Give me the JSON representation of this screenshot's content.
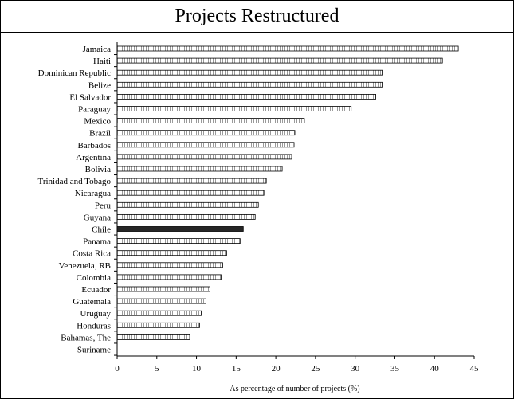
{
  "chart_data": {
    "type": "bar",
    "orientation": "horizontal",
    "title": "Projects Restructured",
    "xlabel": "As percentage of number of projects (%)",
    "ylabel": "",
    "xlim": [
      0,
      45
    ],
    "xticks": [
      "0",
      "5",
      "10",
      "15",
      "20",
      "25",
      "30",
      "35",
      "40",
      "45"
    ],
    "grid": false,
    "legend": "none",
    "highlight": "Chile",
    "colors": {
      "bar_fill": "#ffffff",
      "bar_pattern": "#9a9a9a",
      "highlight_fill": "#262626",
      "axis": "#000000"
    },
    "categories": [
      "Jamaica",
      "Haiti",
      "Dominican Republic",
      "Belize",
      "El Salvador",
      "Paraguay",
      "Mexico",
      "Brazil",
      "Barbados",
      "Argentina",
      "Bolivia",
      "Trinidad and Tobago",
      "Nicaragua",
      "Peru",
      "Guyana",
      "Chile",
      "Panama",
      "Costa Rica",
      "Venezuela, RB",
      "Colombia",
      "Ecuador",
      "Guatemala",
      "Uruguay",
      "Honduras",
      "Bahamas, The",
      "Suriname"
    ],
    "values": [
      43.0,
      41.0,
      33.4,
      33.4,
      32.6,
      29.5,
      23.6,
      22.4,
      22.3,
      22.0,
      20.8,
      18.8,
      18.5,
      17.8,
      17.4,
      15.9,
      15.5,
      13.8,
      13.3,
      13.1,
      11.7,
      11.2,
      10.6,
      10.4,
      9.2,
      0
    ]
  }
}
